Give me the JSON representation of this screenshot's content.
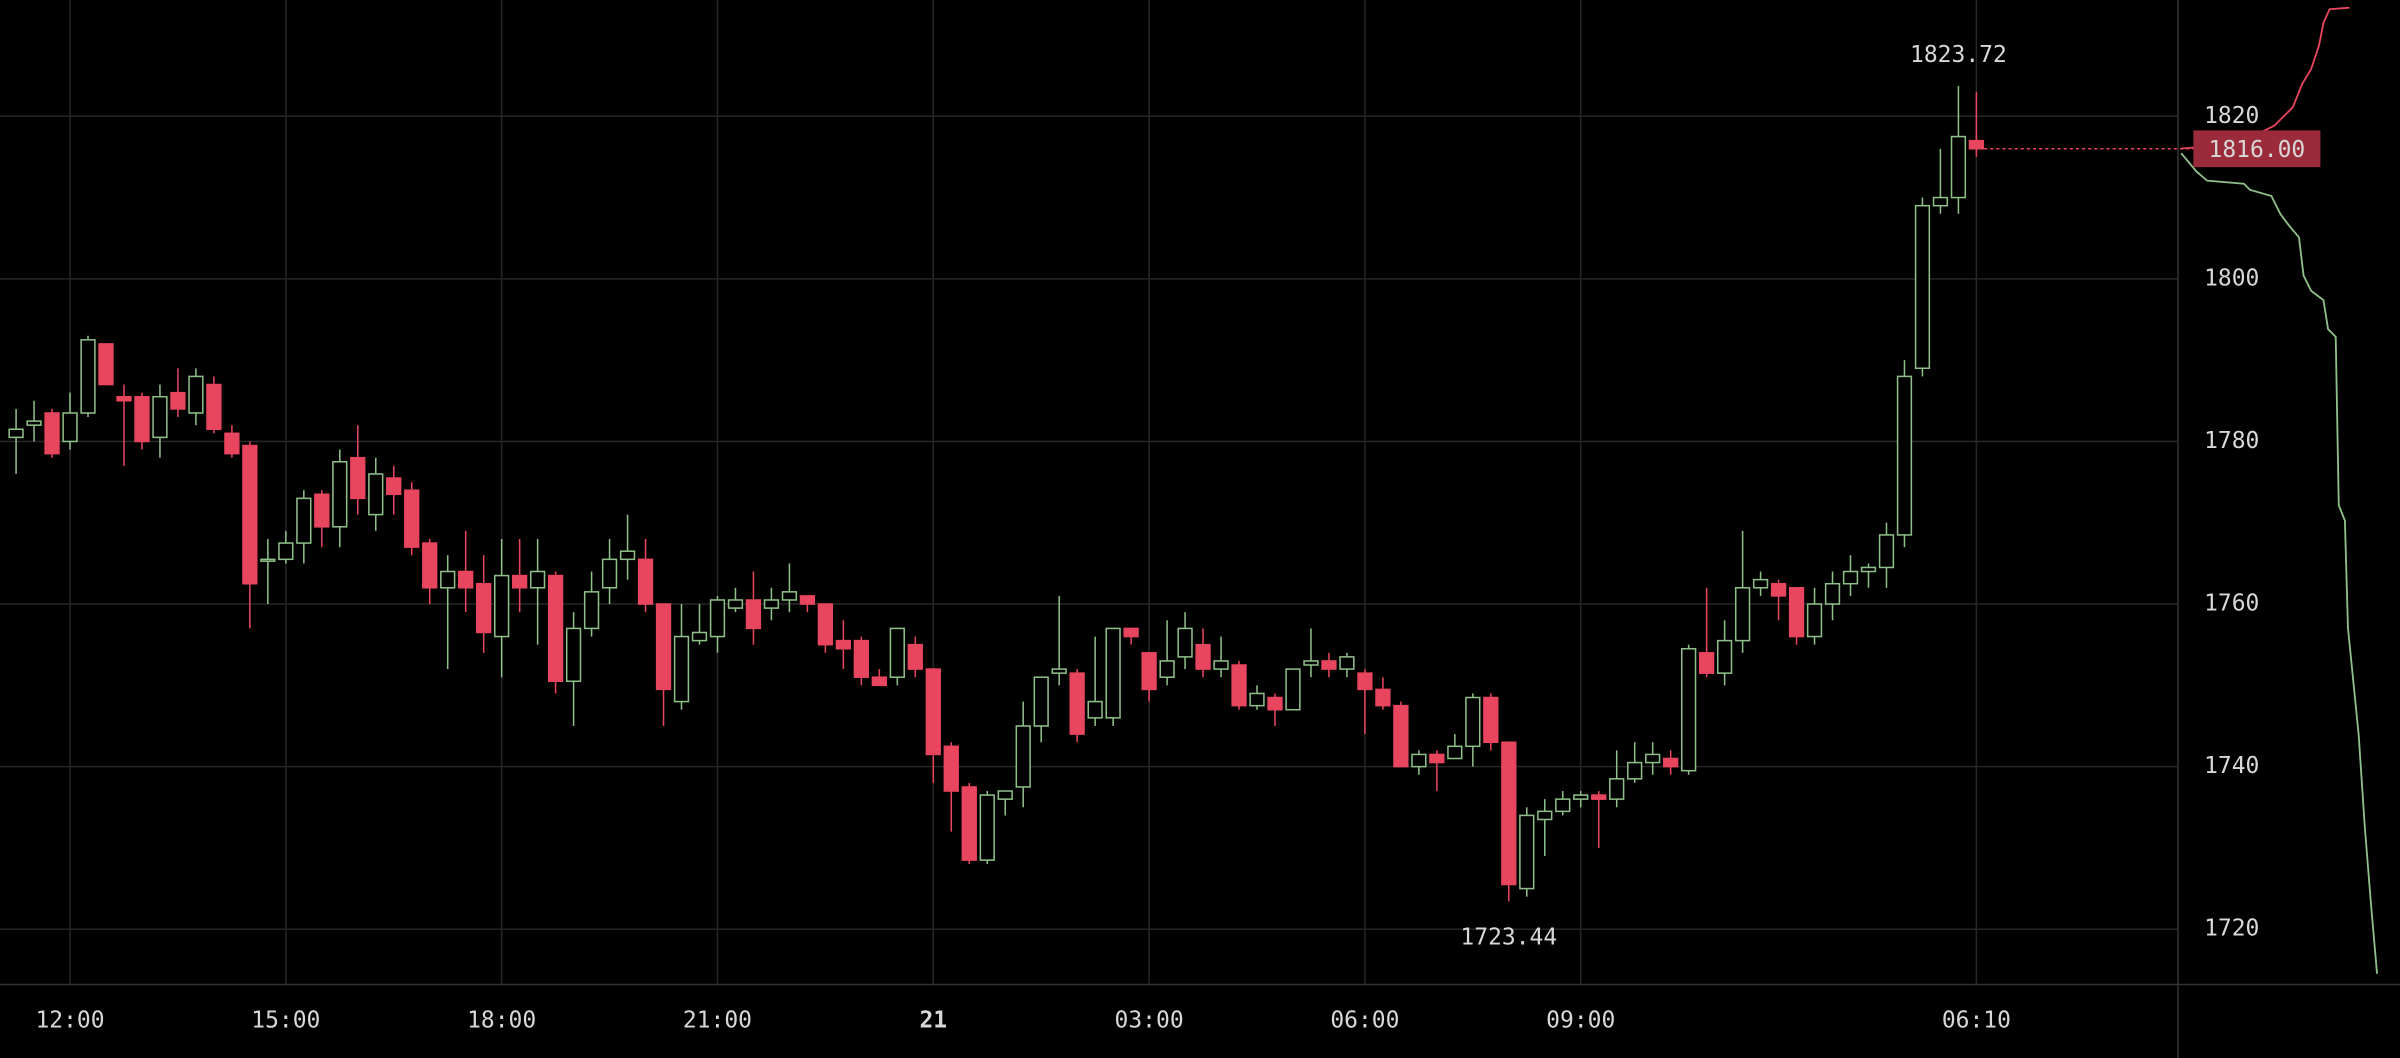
{
  "chart_data": {
    "type": "candlestick",
    "categories": [
      null,
      null,
      null,
      "12:00",
      null,
      null,
      null,
      null,
      null,
      null,
      null,
      null,
      null,
      null,
      null,
      "15:00",
      null,
      null,
      null,
      null,
      null,
      null,
      null,
      null,
      null,
      null,
      null,
      "18:00",
      null,
      null,
      null,
      null,
      null,
      null,
      null,
      null,
      null,
      null,
      null,
      "21:00",
      null,
      null,
      null,
      null,
      null,
      null,
      null,
      null,
      null,
      null,
      null,
      "21",
      null,
      null,
      null,
      null,
      null,
      null,
      null,
      null,
      null,
      null,
      null,
      "03:00",
      null,
      null,
      null,
      null,
      null,
      null,
      null,
      null,
      null,
      null,
      null,
      "06:00",
      null,
      null,
      null,
      null,
      null,
      null,
      null,
      null,
      null,
      null,
      null,
      "09:00",
      null,
      null,
      null,
      null,
      null,
      null,
      null,
      null,
      null,
      null,
      null,
      null,
      null,
      null,
      null,
      null,
      null,
      null,
      null,
      null,
      null,
      "06:10"
    ],
    "open": [
      1780.5,
      1782,
      1783.5,
      1780,
      1783.5,
      1792,
      1785.5,
      1785.5,
      1780.5,
      1786,
      1783.5,
      1787,
      1781,
      1779.5,
      1765.5,
      1765.5,
      1767.5,
      1773.5,
      1769.5,
      1778,
      1771,
      1775.5,
      1774,
      1767.5,
      1762,
      1764,
      1762.5,
      1756,
      1763.5,
      1762,
      1763.5,
      1750.5,
      1757,
      1762,
      1765.5,
      1765.5,
      1760,
      1748,
      1755.5,
      1756,
      1759.5,
      1760.5,
      1759.5,
      1760.5,
      1761,
      1760,
      1755.5,
      1755.5,
      1751,
      1751,
      1755,
      1752,
      1742.5,
      1737.5,
      1728.5,
      1736,
      1737.5,
      1745,
      1751.5,
      1751.5,
      1746,
      1746,
      1757,
      1754,
      1751,
      1753.5,
      1755,
      1752,
      1752.5,
      1747.5,
      1748.5,
      1747,
      1752.5,
      1753,
      1752,
      1751.5,
      1749.5,
      1747.5,
      1740,
      1741.5,
      1741,
      1742.5,
      1748.5,
      1743,
      1725,
      1733.5,
      1734.5,
      1736,
      1736.5,
      1736,
      1738.5,
      1740.5,
      1741,
      1739.5,
      1754,
      1751.5,
      1755.5,
      1762,
      1762.5,
      1762,
      1756,
      1760,
      1762.5,
      1764,
      1764.5,
      1768.5,
      1789,
      1809,
      1810,
      1817
    ],
    "high": [
      1784,
      1785,
      1784,
      1786,
      1793,
      1792,
      1787,
      1786,
      1787,
      1789,
      1789,
      1788,
      1782,
      1780,
      1768,
      1769,
      1774,
      1774,
      1779,
      1782,
      1778,
      1777,
      1775,
      1768,
      1766,
      1769,
      1766,
      1768,
      1768,
      1768,
      1764,
      1759,
      1764,
      1768,
      1771,
      1768,
      1760,
      1760,
      1760,
      1761,
      1762,
      1764,
      1762,
      1765,
      1761,
      1760,
      1758,
      1756,
      1752,
      1757,
      1756,
      1752,
      1743,
      1738,
      1737,
      1737,
      1748,
      1751,
      1761,
      1752,
      1756,
      1757,
      1757,
      1754,
      1758,
      1759,
      1757,
      1756,
      1753,
      1750,
      1749,
      1752,
      1757,
      1754,
      1754,
      1752,
      1751,
      1748,
      1742,
      1742,
      1744,
      1749,
      1749,
      1743,
      1735,
      1736,
      1737,
      1737,
      1737,
      1742,
      1743,
      1743,
      1742,
      1755,
      1762,
      1758,
      1769,
      1764,
      1763,
      1762,
      1762,
      1764,
      1766,
      1765,
      1770,
      1790,
      1810,
      1816,
      1823.72,
      1823
    ],
    "low": [
      1776,
      1780,
      1778,
      1779,
      1783,
      1787,
      1777,
      1779,
      1778,
      1783,
      1782,
      1781,
      1778,
      1757,
      1760,
      1765,
      1765,
      1767,
      1767,
      1771,
      1769,
      1771,
      1766,
      1760,
      1752,
      1759,
      1754,
      1751,
      1759,
      1755,
      1749,
      1745,
      1756,
      1760,
      1763,
      1759,
      1745,
      1747,
      1755,
      1754,
      1759,
      1755,
      1758,
      1759,
      1759,
      1754,
      1752,
      1750,
      1750,
      1750,
      1751,
      1738,
      1732,
      1728,
      1728,
      1734,
      1735,
      1743,
      1750,
      1743,
      1745,
      1745,
      1755,
      1748,
      1750,
      1752,
      1751,
      1751,
      1747,
      1747,
      1745,
      1747,
      1751,
      1751,
      1751,
      1744,
      1747,
      1740,
      1739,
      1737,
      1741,
      1740,
      1742,
      1723.44,
      1724,
      1729,
      1734,
      1735,
      1730,
      1735,
      1738,
      1739,
      1739,
      1739,
      1751,
      1750,
      1754,
      1761,
      1758,
      1755,
      1755,
      1758,
      1761,
      1762,
      1762,
      1767,
      1788,
      1808,
      1808,
      1815
    ],
    "close": [
      1781.5,
      1782.5,
      1778.5,
      1783.5,
      1792.5,
      1787,
      1785,
      1780,
      1785.5,
      1784,
      1788,
      1781.5,
      1778.5,
      1762.5,
      1765.5,
      1767.5,
      1773,
      1769.5,
      1777.5,
      1773,
      1776,
      1773.5,
      1767,
      1762,
      1764,
      1762,
      1756.5,
      1763.5,
      1762,
      1764,
      1750.5,
      1757,
      1761.5,
      1765.5,
      1766.5,
      1760,
      1749.5,
      1756,
      1756.5,
      1760.5,
      1760.5,
      1757,
      1760.5,
      1761.5,
      1760,
      1755,
      1754.5,
      1751,
      1750,
      1757,
      1752,
      1741.5,
      1737,
      1728.5,
      1736.5,
      1737,
      1745,
      1751,
      1752,
      1744,
      1748,
      1757,
      1756,
      1749.5,
      1753,
      1757,
      1752,
      1753,
      1747.5,
      1749,
      1747,
      1752,
      1753,
      1752,
      1753.5,
      1749.5,
      1747.5,
      1740,
      1741.5,
      1740.5,
      1742.5,
      1748.5,
      1743,
      1725.5,
      1734,
      1734.5,
      1736,
      1736.5,
      1736,
      1738.5,
      1740.5,
      1741.5,
      1740,
      1754.5,
      1751.5,
      1755.5,
      1762,
      1763,
      1761,
      1756,
      1760,
      1762.5,
      1764,
      1764.5,
      1768.5,
      1788,
      1809,
      1810,
      1817.5,
      1816
    ],
    "up_color": "#8fbf88",
    "down_color": "#e8455f",
    "ylim": [
      1713.2,
      1834.3
    ],
    "yticks": [
      1720,
      1740,
      1760,
      1780,
      1800,
      1820
    ],
    "grid": true,
    "high_label": 1823.72,
    "low_label": 1723.44,
    "last_price": {
      "value": 1816,
      "label": "1816.00"
    }
  }
}
